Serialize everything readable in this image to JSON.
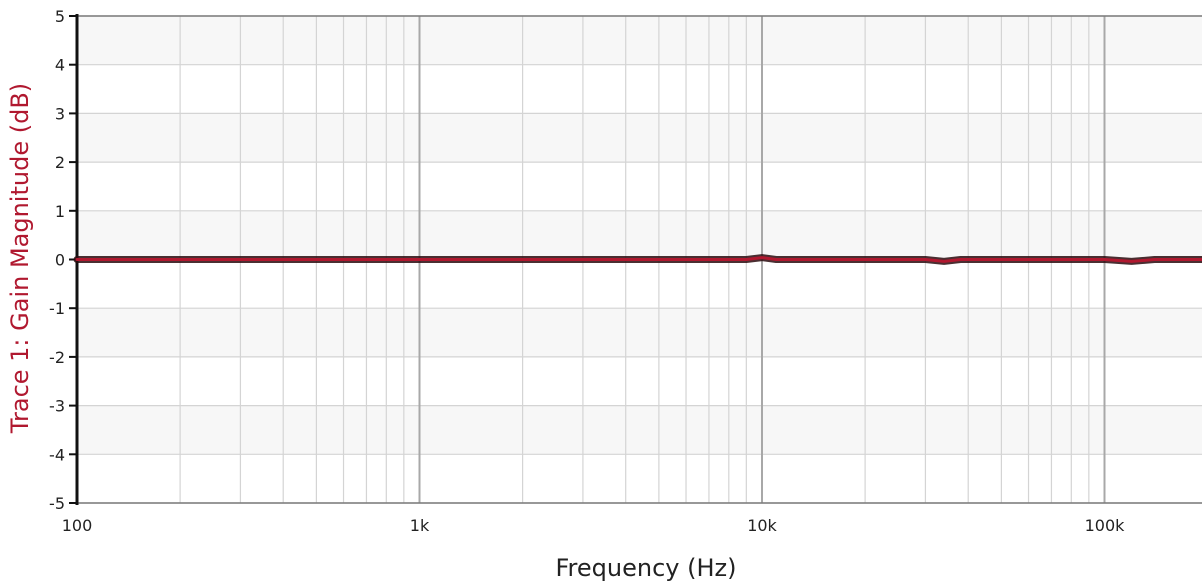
{
  "chart_data": {
    "type": "line",
    "xlabel": "Frequency (Hz)",
    "ylabel": "Trace 1: Gain Magnitude (dB)",
    "x_scale": "log",
    "xlim": [
      100,
      200000
    ],
    "ylim": [
      -5,
      5
    ],
    "x_ticks": [
      {
        "value": 100,
        "label": "100"
      },
      {
        "value": 1000,
        "label": "1k"
      },
      {
        "value": 10000,
        "label": "10k"
      },
      {
        "value": 100000,
        "label": "100k"
      }
    ],
    "y_ticks": [
      5,
      4,
      3,
      2,
      1,
      0,
      -1,
      -2,
      -3,
      -4,
      -5
    ],
    "grid": true,
    "series": [
      {
        "color": "#b0182f",
        "x": [
          100,
          200,
          500,
          1000,
          2000,
          5000,
          9000,
          10000,
          11000,
          20000,
          30000,
          34000,
          38000,
          60000,
          100000,
          120000,
          140000,
          200000
        ],
        "y": [
          0,
          0,
          0,
          0,
          0,
          0,
          0,
          0.04,
          0,
          0,
          0,
          -0.04,
          0,
          0,
          0,
          -0.04,
          0,
          0
        ]
      }
    ],
    "colors": {
      "ylabel": "#b0182f",
      "grid": "#d4d4d4",
      "major_grid": "#a8a8a8",
      "band_light": "#f7f7f7",
      "band_dark": "#ffffff"
    }
  }
}
